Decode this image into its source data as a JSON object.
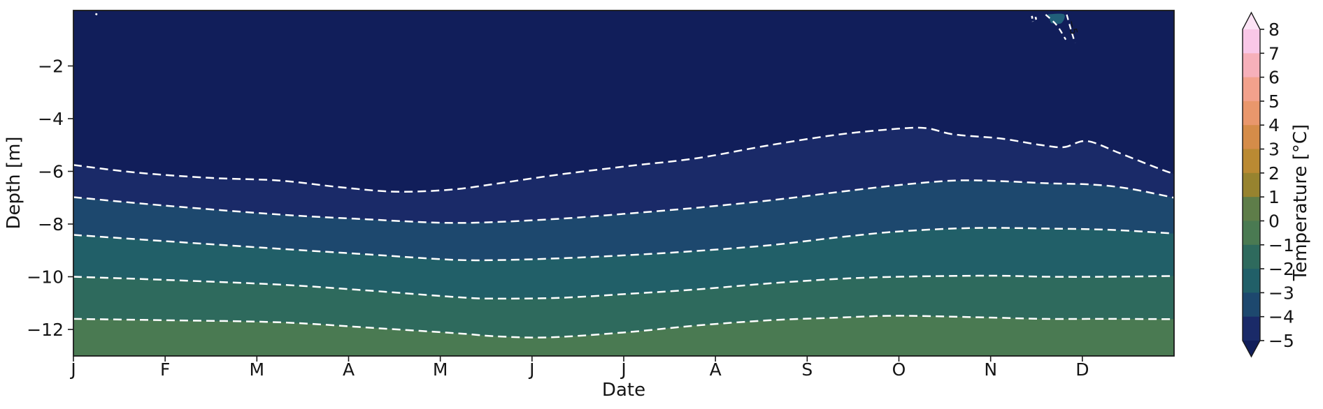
{
  "figure": {
    "background": "#ffffff"
  },
  "axes": {
    "xlabel": "Date",
    "ylabel": "Depth [m]"
  },
  "colorbar": {
    "label": "Temperature [°C]",
    "ticks": [
      8,
      7,
      6,
      5,
      4,
      3,
      2,
      1,
      0,
      -1,
      -2,
      -3,
      -4,
      -5
    ],
    "over_color": "#fce3f5",
    "under_color": "#111e5a",
    "segments_top_to_bottom": [
      {
        "from": 7,
        "to": 8,
        "color": "#f9c7e7"
      },
      {
        "from": 6,
        "to": 7,
        "color": "#f6b0ba"
      },
      {
        "from": 5,
        "to": 6,
        "color": "#f2a18c"
      },
      {
        "from": 4,
        "to": 5,
        "color": "#e9976c"
      },
      {
        "from": 3,
        "to": 4,
        "color": "#d58c49"
      },
      {
        "from": 2,
        "to": 3,
        "color": "#ba8a33"
      },
      {
        "from": 1,
        "to": 2,
        "color": "#97832f"
      },
      {
        "from": 0,
        "to": 1,
        "color": "#5e7d49"
      },
      {
        "from": -1,
        "to": 0,
        "color": "#4a7a52"
      },
      {
        "from": -2,
        "to": -1,
        "color": "#2e6a5d"
      },
      {
        "from": -3,
        "to": -2,
        "color": "#215f68"
      },
      {
        "from": -4,
        "to": -3,
        "color": "#1d486e"
      },
      {
        "from": -5,
        "to": -4,
        "color": "#1a2a68"
      }
    ]
  },
  "chart_data": {
    "type": "filled_contour",
    "title": "",
    "xlabel": "Date",
    "ylabel": "Depth [m]",
    "x_tick_labels": [
      "J",
      "F",
      "M",
      "A",
      "M",
      "J",
      "J",
      "A",
      "S",
      "O",
      "N",
      "D"
    ],
    "x_range_months": [
      0,
      12
    ],
    "y_ticks": [
      -2,
      -4,
      -6,
      -8,
      -10,
      -12
    ],
    "ylim": [
      0.1,
      -13.0
    ],
    "grid": false,
    "legend": "colorbar right, Temperature [°C], range -5 to 8 with over/under arrows",
    "contour_levels": [
      -5,
      -4,
      -3,
      -2,
      -1
    ],
    "contour_line_style": {
      "color": "#ffffff",
      "dash": [
        12,
        7
      ],
      "width": 2.5
    },
    "fill_bands": [
      {
        "range": "below -5",
        "color": "#111e5a"
      },
      {
        "range": "-5 to -4",
        "color": "#1a2a68"
      },
      {
        "range": "-4 to -3",
        "color": "#1d486e"
      },
      {
        "range": "-3 to -2",
        "color": "#215f68"
      },
      {
        "range": "-2 to -1",
        "color": "#2e6a5d"
      },
      {
        "range": "-1 to 0",
        "color": "#4a7a52"
      }
    ],
    "contour_lines": [
      {
        "level": -5,
        "points_month_depth": [
          [
            0,
            -5.76
          ],
          [
            0.7,
            -6.05
          ],
          [
            1.5,
            -6.25
          ],
          [
            2.25,
            -6.35
          ],
          [
            2.9,
            -6.6
          ],
          [
            3.5,
            -6.77
          ],
          [
            4.1,
            -6.7
          ],
          [
            4.55,
            -6.5
          ],
          [
            5.3,
            -6.12
          ],
          [
            6.05,
            -5.8
          ],
          [
            6.8,
            -5.5
          ],
          [
            7.6,
            -5.0
          ],
          [
            8.35,
            -4.6
          ],
          [
            9.0,
            -4.38
          ],
          [
            9.3,
            -4.36
          ],
          [
            9.6,
            -4.6
          ],
          [
            10.1,
            -4.75
          ],
          [
            10.55,
            -5.0
          ],
          [
            10.8,
            -5.08
          ],
          [
            11.05,
            -4.85
          ],
          [
            11.4,
            -5.3
          ],
          [
            11.8,
            -5.85
          ],
          [
            12,
            -6.1
          ]
        ]
      },
      {
        "level": -4,
        "points_month_depth": [
          [
            0,
            -6.98
          ],
          [
            1,
            -7.3
          ],
          [
            2.25,
            -7.64
          ],
          [
            3.2,
            -7.82
          ],
          [
            4,
            -7.95
          ],
          [
            4.55,
            -7.93
          ],
          [
            5.3,
            -7.8
          ],
          [
            6.05,
            -7.6
          ],
          [
            6.8,
            -7.38
          ],
          [
            7.6,
            -7.1
          ],
          [
            8.35,
            -6.78
          ],
          [
            9.0,
            -6.52
          ],
          [
            9.6,
            -6.35
          ],
          [
            10.1,
            -6.37
          ],
          [
            10.6,
            -6.45
          ],
          [
            11.1,
            -6.5
          ],
          [
            11.5,
            -6.65
          ],
          [
            12,
            -7.0
          ]
        ]
      },
      {
        "level": -3,
        "points_month_depth": [
          [
            0,
            -8.41
          ],
          [
            1,
            -8.65
          ],
          [
            2.25,
            -8.94
          ],
          [
            3.2,
            -9.15
          ],
          [
            4.1,
            -9.35
          ],
          [
            4.6,
            -9.37
          ],
          [
            5.3,
            -9.3
          ],
          [
            6.05,
            -9.18
          ],
          [
            6.8,
            -9.02
          ],
          [
            7.6,
            -8.8
          ],
          [
            8.35,
            -8.5
          ],
          [
            9.0,
            -8.28
          ],
          [
            9.8,
            -8.15
          ],
          [
            10.6,
            -8.17
          ],
          [
            11.3,
            -8.22
          ],
          [
            12,
            -8.36
          ]
        ]
      },
      {
        "level": -2,
        "points_month_depth": [
          [
            0,
            -10.0
          ],
          [
            1,
            -10.12
          ],
          [
            2.25,
            -10.3
          ],
          [
            3.2,
            -10.52
          ],
          [
            4.2,
            -10.78
          ],
          [
            4.6,
            -10.83
          ],
          [
            5.3,
            -10.8
          ],
          [
            6.05,
            -10.65
          ],
          [
            6.8,
            -10.48
          ],
          [
            7.6,
            -10.25
          ],
          [
            8.35,
            -10.08
          ],
          [
            9.0,
            -10.0
          ],
          [
            10,
            -9.96
          ],
          [
            10.6,
            -10.0
          ],
          [
            11.3,
            -10.0
          ],
          [
            12,
            -9.97
          ]
        ]
      },
      {
        "level": -1,
        "points_month_depth": [
          [
            0,
            -11.6
          ],
          [
            1,
            -11.65
          ],
          [
            2.25,
            -11.73
          ],
          [
            3.3,
            -11.95
          ],
          [
            4.2,
            -12.15
          ],
          [
            4.6,
            -12.26
          ],
          [
            5.2,
            -12.3
          ],
          [
            6.05,
            -12.1
          ],
          [
            6.8,
            -11.85
          ],
          [
            7.6,
            -11.65
          ],
          [
            8.35,
            -11.55
          ],
          [
            9.0,
            -11.48
          ],
          [
            10,
            -11.55
          ],
          [
            10.6,
            -11.6
          ],
          [
            11.3,
            -11.6
          ],
          [
            12,
            -11.61
          ]
        ]
      }
    ],
    "surface_anomaly": {
      "label": "−5",
      "label_pos_month_depth": [
        10.86,
        -0.56
      ],
      "label_rotation_deg": 78,
      "patch_color": "#21607a",
      "patch_polygon_month_depth": [
        [
          10.62,
          -0.04
        ],
        [
          10.8,
          -0.04
        ],
        [
          10.77,
          -0.38
        ],
        [
          10.66,
          -0.38
        ]
      ],
      "dashed_branches_month_depth": [
        [
          [
            10.6,
            -0.05
          ],
          [
            10.72,
            -0.45
          ],
          [
            10.82,
            -1.0
          ]
        ],
        [
          [
            10.83,
            -0.05
          ],
          [
            10.87,
            -0.55
          ],
          [
            10.92,
            -1.12
          ]
        ]
      ],
      "fragments_month_depth": [
        [
          [
            10.45,
            -0.1
          ],
          [
            10.46,
            -0.32
          ]
        ],
        [
          [
            10.49,
            -0.14
          ],
          [
            10.5,
            -0.3
          ]
        ],
        [
          [
            0.24,
            -0.02
          ],
          [
            0.26,
            -0.05
          ]
        ]
      ]
    }
  }
}
